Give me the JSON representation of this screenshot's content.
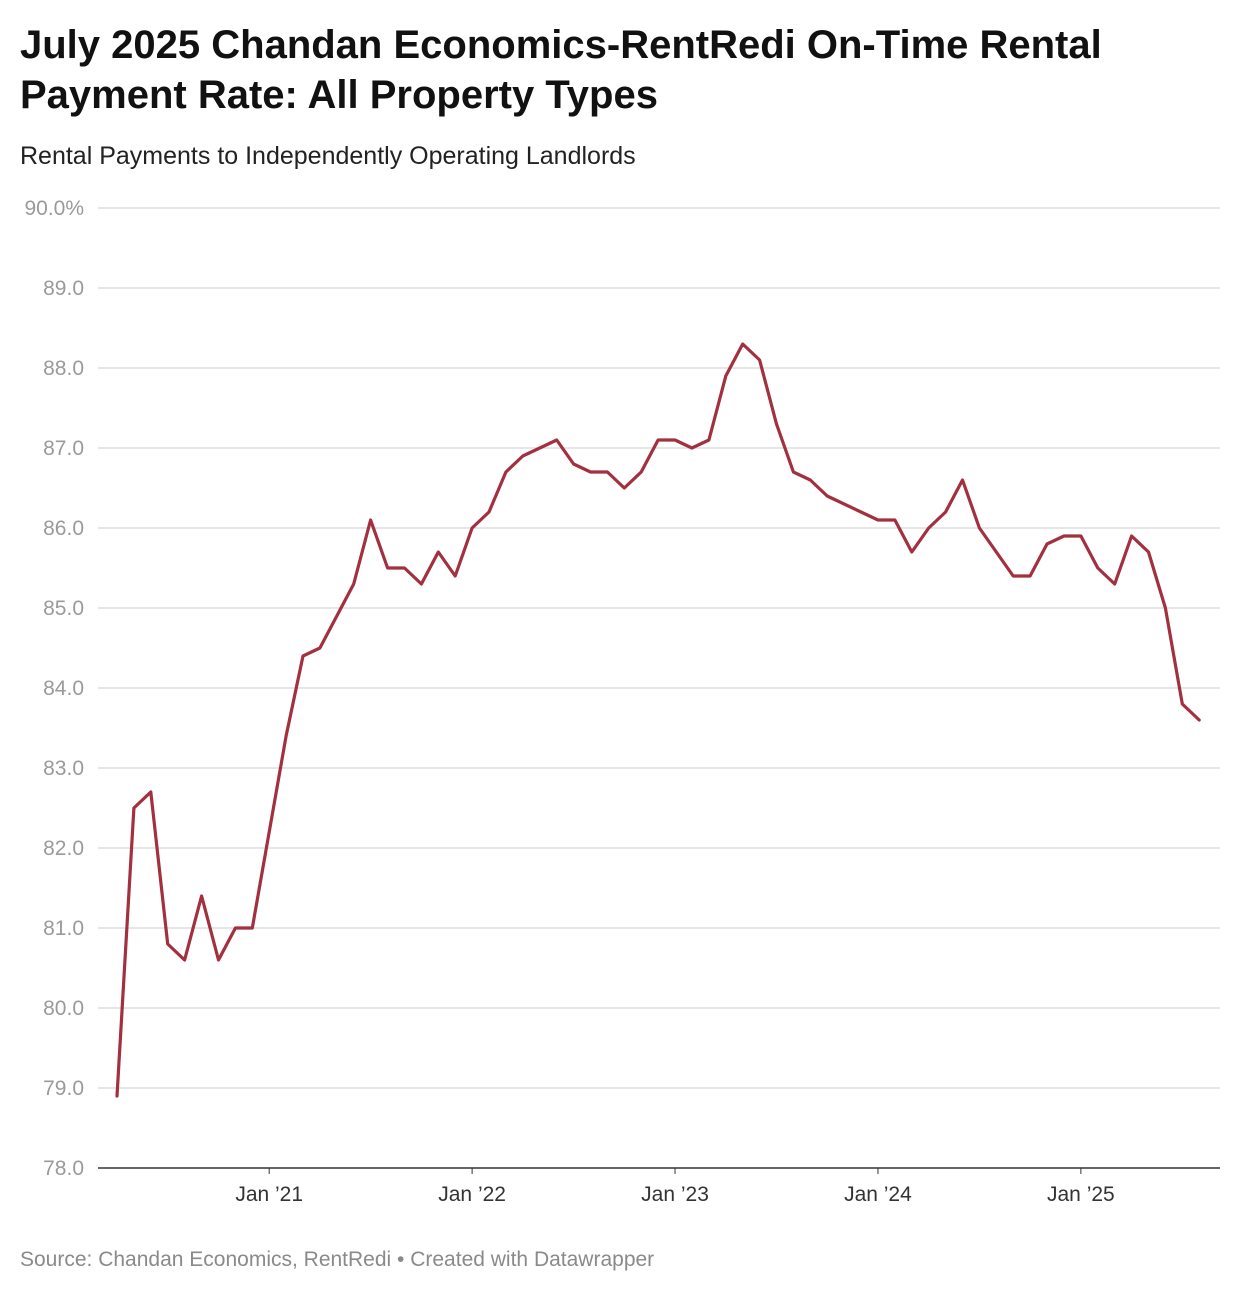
{
  "header": {
    "title": "July 2025 Chandan Economics-RentRedi On-Time Rental Payment Rate: All Property Types",
    "subtitle": "Rental Payments to Independently Operating Landlords"
  },
  "footer": {
    "source": "Source: Chandan Economics, RentRedi • Created with Datawrapper"
  },
  "colors": {
    "line": "#a3303f",
    "grid": "#dddddd",
    "baseline": "#333333"
  },
  "chart_data": {
    "type": "line",
    "title": "July 2025 Chandan Economics-RentRedi On-Time Rental Payment Rate: All Property Types",
    "subtitle": "Rental Payments to Independently Operating Landlords",
    "xlabel": "",
    "ylabel": "",
    "ylim": [
      78,
      90
    ],
    "y_tick_values": [
      78,
      79,
      80,
      81,
      82,
      83,
      84,
      85,
      86,
      87,
      88,
      89,
      90
    ],
    "y_tick_labels": [
      "78.0",
      "79.0",
      "80.0",
      "81.0",
      "82.0",
      "83.0",
      "84.0",
      "85.0",
      "86.0",
      "87.0",
      "88.0",
      "89.0",
      "90.0%"
    ],
    "x_range": [
      "2020-04",
      "2025-07"
    ],
    "x_ticks": [
      {
        "date": "2021-01",
        "label": "Jan ’21"
      },
      {
        "date": "2022-01",
        "label": "Jan ’22"
      },
      {
        "date": "2023-01",
        "label": "Jan ’23"
      },
      {
        "date": "2024-01",
        "label": "Jan ’24"
      },
      {
        "date": "2025-01",
        "label": "Jan ’25"
      }
    ],
    "grid": true,
    "series": [
      {
        "color": "#a3303f",
        "points": [
          [
            "2020-04",
            78.9
          ],
          [
            "2020-05",
            82.5
          ],
          [
            "2020-06",
            82.7
          ],
          [
            "2020-07",
            80.8
          ],
          [
            "2020-08",
            80.6
          ],
          [
            "2020-09",
            81.4
          ],
          [
            "2020-10",
            80.6
          ],
          [
            "2020-11",
            81.0
          ],
          [
            "2020-12",
            81.0
          ],
          [
            "2021-01",
            82.2
          ],
          [
            "2021-02",
            83.4
          ],
          [
            "2021-03",
            84.4
          ],
          [
            "2021-04",
            84.5
          ],
          [
            "2021-05",
            84.9
          ],
          [
            "2021-06",
            85.3
          ],
          [
            "2021-07",
            86.1
          ],
          [
            "2021-08",
            85.5
          ],
          [
            "2021-09",
            85.5
          ],
          [
            "2021-10",
            85.3
          ],
          [
            "2021-11",
            85.7
          ],
          [
            "2021-12",
            85.4
          ],
          [
            "2022-01",
            86.0
          ],
          [
            "2022-02",
            86.2
          ],
          [
            "2022-03",
            86.7
          ],
          [
            "2022-04",
            86.9
          ],
          [
            "2022-05",
            87.0
          ],
          [
            "2022-06",
            87.1
          ],
          [
            "2022-07",
            86.8
          ],
          [
            "2022-08",
            86.7
          ],
          [
            "2022-09",
            86.7
          ],
          [
            "2022-10",
            86.5
          ],
          [
            "2022-11",
            86.7
          ],
          [
            "2022-12",
            87.1
          ],
          [
            "2023-01",
            87.1
          ],
          [
            "2023-02",
            87.0
          ],
          [
            "2023-03",
            87.1
          ],
          [
            "2023-04",
            87.9
          ],
          [
            "2023-05",
            88.3
          ],
          [
            "2023-06",
            88.1
          ],
          [
            "2023-07",
            87.3
          ],
          [
            "2023-08",
            86.7
          ],
          [
            "2023-09",
            86.6
          ],
          [
            "2023-10",
            86.4
          ],
          [
            "2023-11",
            86.3
          ],
          [
            "2023-12",
            86.2
          ],
          [
            "2024-01",
            86.1
          ],
          [
            "2024-02",
            86.1
          ],
          [
            "2024-03",
            85.7
          ],
          [
            "2024-04",
            86.0
          ],
          [
            "2024-05",
            86.2
          ],
          [
            "2024-06",
            86.6
          ],
          [
            "2024-07",
            86.0
          ],
          [
            "2024-08",
            85.7
          ],
          [
            "2024-09",
            85.4
          ],
          [
            "2024-10",
            85.4
          ],
          [
            "2024-11",
            85.8
          ],
          [
            "2024-12",
            85.9
          ],
          [
            "2025-01",
            85.9
          ],
          [
            "2025-02",
            85.5
          ],
          [
            "2025-03",
            85.3
          ],
          [
            "2025-04",
            85.9
          ],
          [
            "2025-05",
            85.7
          ],
          [
            "2025-06",
            85.0
          ],
          [
            "2025-07",
            83.8
          ],
          [
            "2025-08",
            83.6
          ]
        ]
      }
    ]
  }
}
